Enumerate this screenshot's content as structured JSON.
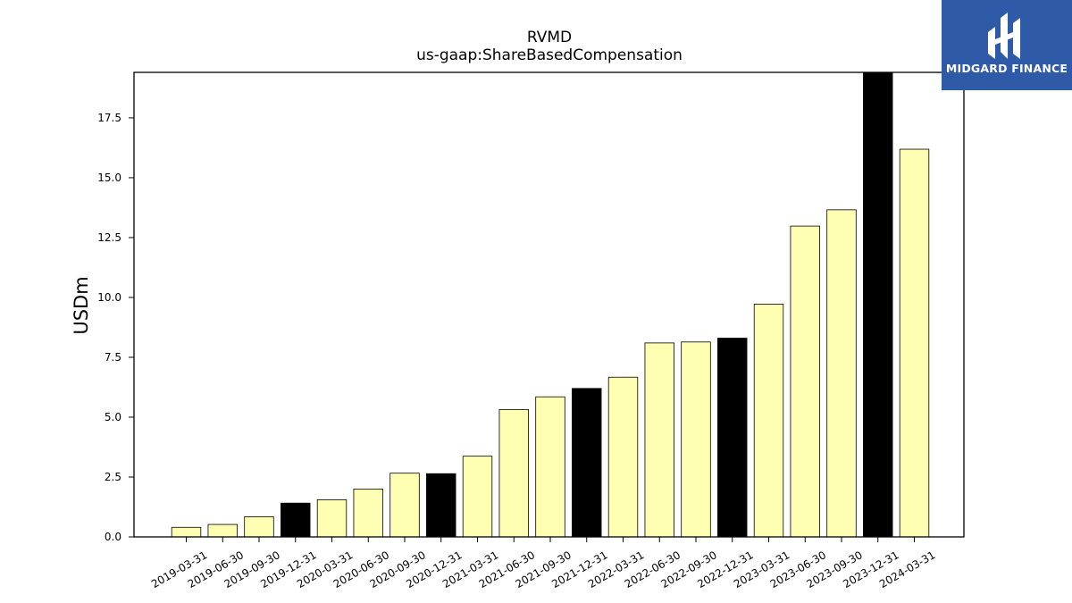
{
  "chart_data": {
    "type": "bar",
    "title": "RVMD",
    "subtitle": "us-gaap:ShareBasedCompensation",
    "xlabel": "",
    "ylabel": "USDm",
    "ylim": [
      0,
      19.4
    ],
    "yticks": [
      "0.0",
      "2.5",
      "5.0",
      "7.5",
      "10.0",
      "12.5",
      "15.0",
      "17.5"
    ],
    "grid": false,
    "colors": {
      "quarter": "#ffffb3",
      "year_end": "#000000",
      "edge": "#000000"
    },
    "categories": [
      "2019-03-31",
      "2019-06-30",
      "2019-09-30",
      "2019-12-31",
      "2020-03-31",
      "2020-06-30",
      "2020-09-30",
      "2020-12-31",
      "2021-03-31",
      "2021-06-30",
      "2021-09-30",
      "2021-12-31",
      "2022-03-31",
      "2022-06-30",
      "2022-09-30",
      "2022-12-31",
      "2023-03-31",
      "2023-06-30",
      "2023-09-30",
      "2023-12-31",
      "2024-03-31"
    ],
    "values": [
      0.4,
      0.52,
      0.84,
      1.41,
      1.55,
      2.0,
      2.66,
      2.64,
      3.37,
      5.32,
      5.85,
      6.2,
      6.67,
      8.1,
      8.14,
      8.3,
      9.72,
      12.98,
      13.66,
      19.4,
      16.19
    ],
    "year_end": [
      false,
      false,
      false,
      true,
      false,
      false,
      false,
      true,
      false,
      false,
      false,
      true,
      false,
      false,
      false,
      true,
      false,
      false,
      false,
      true,
      false
    ]
  },
  "logo": {
    "text": "MIDGARD FINANCE",
    "bg_color": "#2f5aa8"
  }
}
